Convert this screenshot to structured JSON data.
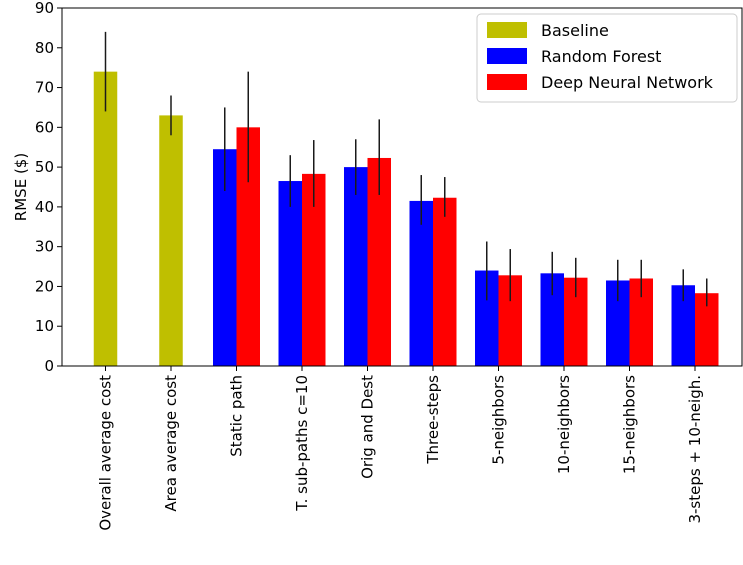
{
  "chart_data": {
    "type": "bar",
    "title": "",
    "xlabel": "",
    "ylabel": "RMSE ($)",
    "ylim": [
      0,
      90
    ],
    "yticks": [
      0,
      10,
      20,
      30,
      40,
      50,
      60,
      70,
      80,
      90
    ],
    "grid": false,
    "legend_position": "top-right",
    "categories": [
      "Overall average cost",
      "Area average cost",
      "Static path",
      "T. sub-paths c=10",
      "Orig and Dest",
      "Three-steps",
      "5-neighbors",
      "10-neighbors",
      "15-neighbors",
      "3-steps + 10-neigh."
    ],
    "series": [
      {
        "name": "Baseline",
        "color": "#bfbf00",
        "values": [
          74,
          63,
          null,
          null,
          null,
          null,
          null,
          null,
          null,
          null
        ],
        "error_low": [
          64,
          58,
          null,
          null,
          null,
          null,
          null,
          null,
          null,
          null
        ],
        "error_high": [
          84,
          68,
          null,
          null,
          null,
          null,
          null,
          null,
          null,
          null
        ]
      },
      {
        "name": "Random Forest",
        "color": "#0000ff",
        "values": [
          null,
          null,
          54.5,
          46.5,
          50,
          41.5,
          24,
          23.3,
          21.5,
          20.3
        ],
        "error_low": [
          null,
          null,
          44,
          40,
          43,
          35.5,
          16.5,
          17.8,
          16.3,
          16.3
        ],
        "error_high": [
          null,
          null,
          65,
          53,
          57,
          48,
          31.3,
          28.7,
          26.7,
          24.3
        ]
      },
      {
        "name": "Deep Neural Network",
        "color": "#ff0000",
        "values": [
          null,
          null,
          60,
          48.3,
          52.3,
          42.3,
          22.8,
          22.2,
          22,
          18.3
        ],
        "error_low": [
          null,
          null,
          46.2,
          40,
          43,
          37.5,
          16.3,
          17.3,
          17.3,
          15
        ],
        "error_high": [
          null,
          null,
          74,
          56.8,
          62,
          47.5,
          29.4,
          27.2,
          26.7,
          22
        ]
      }
    ]
  }
}
